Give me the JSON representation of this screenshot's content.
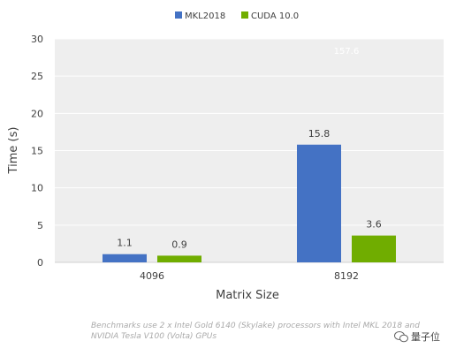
{
  "chart_data": {
    "type": "bar",
    "categories": [
      "4096",
      "8192"
    ],
    "series": [
      {
        "name": "MKL2018",
        "values": [
          1.1,
          15.8
        ],
        "color": "#4472c4"
      },
      {
        "name": "CUDA 10.0",
        "values": [
          0.9,
          3.6
        ],
        "color": "#70ad00"
      }
    ],
    "data_labels": [
      [
        "1.1",
        "15.8"
      ],
      [
        "0.9",
        "3.6"
      ]
    ],
    "xlabel": "Matrix Size",
    "ylabel": "Time (s)",
    "ylim": [
      0,
      30
    ],
    "yticks": [
      0,
      5,
      10,
      15,
      20,
      25,
      30
    ],
    "grid": true,
    "legend_position": "top-center",
    "plot_background": "#eeeeee",
    "ghost_label": "157.6"
  },
  "caption": {
    "line1": "Benchmarks use 2 x Intel Gold 6140  (Skylake) processors with Intel MKL 2018 and",
    "line2": "NVIDIA Tesla V100 (Volta) GPUs"
  },
  "watermark": {
    "text": "量子位"
  }
}
